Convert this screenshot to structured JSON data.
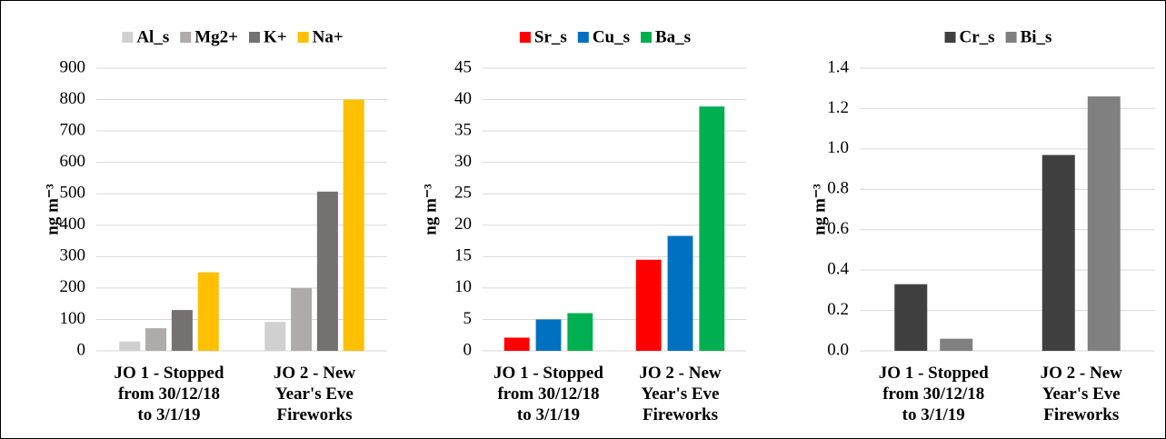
{
  "chart_data": [
    {
      "type": "bar",
      "ylabel": "ng m⁻³",
      "categories": [
        "JO 1 - Stopped\nfrom 30/12/18\nto 3/1/19",
        "JO 2 - New\nYear's Eve\nFireworks"
      ],
      "series": [
        {
          "name": "Al_s",
          "color": "#d0d0d0",
          "values": [
            30,
            92
          ]
        },
        {
          "name": "Mg2+",
          "color": "#afabab",
          "values": [
            72,
            200
          ]
        },
        {
          "name": "K+",
          "color": "#767171",
          "values": [
            130,
            507
          ]
        },
        {
          "name": "Na+",
          "color": "#ffc000",
          "values": [
            250,
            800
          ]
        }
      ],
      "ylim": [
        0,
        900
      ],
      "yticks": [
        0,
        100,
        200,
        300,
        400,
        500,
        600,
        700,
        800,
        900
      ],
      "grid": true,
      "legend": "top"
    },
    {
      "type": "bar",
      "ylabel": "ng m⁻³",
      "categories": [
        "JO 1 - Stopped\nfrom 30/12/18\nto 3/1/19",
        "JO 2 - New\nYear's Eve\nFireworks"
      ],
      "series": [
        {
          "name": "Sr_s",
          "color": "#ff0000",
          "values": [
            2.1,
            14.5
          ]
        },
        {
          "name": "Cu_s",
          "color": "#0070c0",
          "values": [
            5,
            18.3
          ]
        },
        {
          "name": "Ba_s",
          "color": "#00b050",
          "values": [
            6,
            38.9
          ]
        }
      ],
      "ylim": [
        0,
        45
      ],
      "yticks": [
        0,
        5,
        10,
        15,
        20,
        25,
        30,
        35,
        40,
        45
      ],
      "grid": true,
      "legend": "top"
    },
    {
      "type": "bar",
      "ylabel": "ng m⁻³",
      "categories": [
        "JO 1 - Stopped\nfrom 30/12/18\nto 3/1/19",
        "JO 2 - New\nYear's Eve\nFireworks"
      ],
      "series": [
        {
          "name": "Cr_s",
          "color": "#404040",
          "values": [
            0.33,
            0.97
          ]
        },
        {
          "name": "Bi_s",
          "color": "#808080",
          "values": [
            0.06,
            1.26
          ]
        }
      ],
      "ylim": [
        0,
        1.4
      ],
      "yticks": [
        {
          "value": 0,
          "label": "0.0"
        },
        0.2,
        0.4,
        0.6,
        0.8,
        {
          "value": 1,
          "label": "1.0"
        },
        1.2,
        1.4
      ],
      "grid": true,
      "legend": "top"
    }
  ]
}
